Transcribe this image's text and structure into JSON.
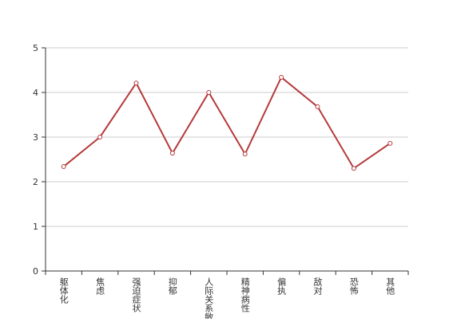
{
  "chart_data": {
    "type": "line",
    "categories": [
      "躯体化",
      "焦虑",
      "强迫症状",
      "抑郁",
      "人际关系敏感",
      "精神病性",
      "偏执",
      "敌对",
      "恐怖",
      "其他"
    ],
    "values": [
      2.34,
      3.0,
      4.21,
      2.64,
      4.0,
      2.62,
      4.34,
      3.68,
      2.3,
      2.86
    ],
    "color": "#b5393a",
    "ylim": [
      0,
      5
    ],
    "yticks": [
      0,
      1,
      2,
      3,
      4,
      5
    ],
    "grid": true
  }
}
